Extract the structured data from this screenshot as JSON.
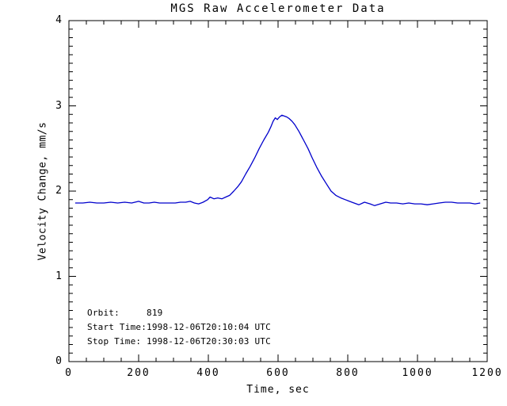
{
  "chart_data": {
    "type": "line",
    "title": "MGS Raw Accelerometer Data",
    "xlabel": "Time, sec",
    "ylabel": "Velocity Change, mm/s",
    "xlim": [
      0,
      1200
    ],
    "ylim": [
      0,
      4
    ],
    "x_major_ticks": [
      0,
      200,
      400,
      600,
      800,
      1000,
      1200
    ],
    "x_minor_interval": 50,
    "y_major_ticks": [
      0,
      1,
      2,
      3,
      4
    ],
    "y_minor_interval": 0.1,
    "grid": false,
    "legend": "none",
    "background_color": "#ffffff",
    "axis_color": "#000000",
    "line_color": "#0000cc",
    "series": [
      {
        "name": "velocity_change",
        "x": [
          18,
          40,
          60,
          80,
          100,
          120,
          140,
          160,
          180,
          200,
          215,
          230,
          245,
          260,
          275,
          290,
          305,
          320,
          335,
          348,
          360,
          372,
          385,
          398,
          405,
          416,
          427,
          439,
          450,
          461,
          473,
          484,
          495,
          507,
          520,
          533,
          546,
          559,
          572,
          580,
          586,
          592,
          598,
          604,
          611,
          618,
          625,
          632,
          640,
          648,
          660,
          673,
          686,
          698,
          711,
          724,
          738,
          752,
          766,
          780,
          793,
          805,
          818,
          832,
          848,
          864,
          877,
          893,
          909,
          923,
          940,
          958,
          975,
          992,
          1010,
          1028,
          1045,
          1062,
          1080,
          1098,
          1115,
          1132,
          1150,
          1165,
          1180
        ],
        "y": [
          1.86,
          1.86,
          1.87,
          1.86,
          1.86,
          1.87,
          1.86,
          1.87,
          1.86,
          1.88,
          1.86,
          1.86,
          1.87,
          1.86,
          1.86,
          1.86,
          1.86,
          1.87,
          1.87,
          1.88,
          1.86,
          1.85,
          1.87,
          1.9,
          1.93,
          1.91,
          1.92,
          1.91,
          1.93,
          1.95,
          2.0,
          2.05,
          2.11,
          2.2,
          2.29,
          2.39,
          2.5,
          2.6,
          2.69,
          2.76,
          2.82,
          2.86,
          2.84,
          2.87,
          2.89,
          2.88,
          2.87,
          2.85,
          2.82,
          2.78,
          2.7,
          2.6,
          2.5,
          2.39,
          2.28,
          2.18,
          2.09,
          2.0,
          1.95,
          1.92,
          1.9,
          1.88,
          1.86,
          1.84,
          1.87,
          1.85,
          1.83,
          1.85,
          1.87,
          1.86,
          1.86,
          1.85,
          1.86,
          1.85,
          1.85,
          1.84,
          1.85,
          1.86,
          1.87,
          1.87,
          1.86,
          1.86,
          1.86,
          1.85,
          1.86
        ]
      }
    ],
    "annotations": [
      {
        "label": "Orbit:",
        "value": "819"
      },
      {
        "label": "Start Time:",
        "value": "1998-12-06T20:10:04 UTC"
      },
      {
        "label": "Stop Time:",
        "value": "1998-12-06T20:30:03 UTC"
      }
    ]
  }
}
